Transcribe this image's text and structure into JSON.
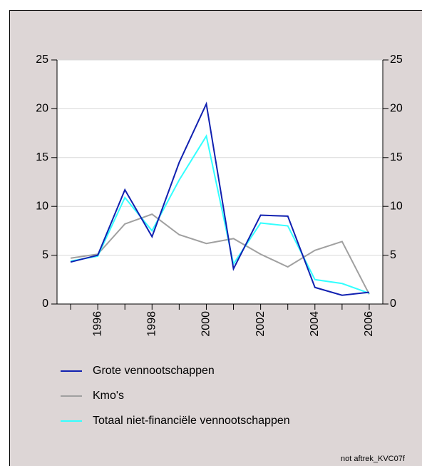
{
  "chart_data": {
    "type": "line",
    "x": [
      1995,
      1996,
      1997,
      1998,
      1999,
      2000,
      2001,
      2002,
      2003,
      2004,
      2005,
      2006
    ],
    "series": [
      {
        "name": "Grote vennootschappen",
        "color": "#1020b0",
        "values": [
          4.3,
          5.0,
          11.7,
          6.9,
          14.5,
          20.5,
          3.6,
          9.1,
          9.0,
          1.7,
          0.9,
          1.2
        ]
      },
      {
        "name": "Kmo's",
        "color": "#a0a0a0",
        "values": [
          4.7,
          5.1,
          8.2,
          9.2,
          7.1,
          6.2,
          6.7,
          5.1,
          3.8,
          5.5,
          6.4,
          1.0
        ]
      },
      {
        "name": "Totaal niet-financiële vennootschappen",
        "color": "#33ffff",
        "values": [
          4.4,
          4.9,
          10.9,
          7.5,
          12.7,
          17.2,
          4.1,
          8.3,
          8.0,
          2.5,
          2.1,
          1.1
        ]
      }
    ],
    "xlim": [
      1994.5,
      2006.5
    ],
    "xticks": [
      1996,
      1998,
      2000,
      2002,
      2004,
      2006
    ],
    "xminorticks": [
      1995,
      1997,
      1999,
      2001,
      2003,
      2005
    ],
    "ylim": [
      0,
      25
    ],
    "yticks": [
      0,
      5,
      10,
      15,
      20,
      25
    ],
    "y2lim": [
      0,
      25
    ],
    "y2ticks": [
      0,
      5,
      10,
      15,
      20,
      25
    ],
    "grid": true,
    "footnote": "not aftrek_KVC07f"
  }
}
